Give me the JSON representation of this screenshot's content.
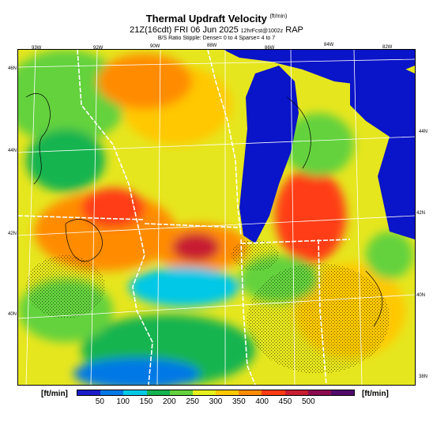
{
  "header": {
    "title": "Thermal Updraft Velocity",
    "title_unit": "(ft/min)",
    "subtitle_time": "21Z(16cdt) FRI 06 Jun 2025",
    "subtitle_forecast": "12hrFcst@1002z",
    "subtitle_model": "RAP",
    "stipple_note": "B/S Ratio Stipple: Dense= 0 to 4 Sparse= 4 to 7"
  },
  "map": {
    "lon_labels": [
      "93W",
      "92W",
      "90W",
      "88W",
      "86W",
      "84W",
      "82W"
    ],
    "lat_labels_left": [
      "46N",
      "44N",
      "42N",
      "40N"
    ],
    "lat_labels_right": [
      "44N",
      "42N",
      "40N",
      "38N"
    ],
    "colors": {
      "water": "#0a14c8",
      "border_state": "#ffffff",
      "grid": "#ffffff"
    }
  },
  "colorbar": {
    "unit_left": "[ft/min]",
    "unit_right": "[ft/min]",
    "tick_labels": [
      "50",
      "100",
      "150",
      "200",
      "250",
      "300",
      "350",
      "400",
      "450",
      "500"
    ],
    "colors": [
      "#1c1cc8",
      "#0078e6",
      "#00c8e6",
      "#14b450",
      "#64d23c",
      "#e6f01e",
      "#ffc800",
      "#ff8c00",
      "#ff3c14",
      "#c81e32",
      "#8c0a50",
      "#500a6e"
    ]
  }
}
